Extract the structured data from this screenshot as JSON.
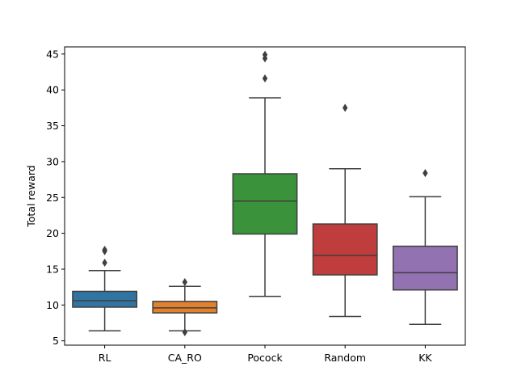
{
  "chart_data": {
    "type": "box",
    "title": "",
    "xlabel": "",
    "ylabel": "Total reward",
    "ylim": [
      4.4,
      46.0
    ],
    "yticks": [
      5,
      10,
      15,
      20,
      25,
      30,
      35,
      40,
      45
    ],
    "grid": false,
    "categories": [
      "RL",
      "CA_RO",
      "Pocock",
      "Random",
      "KK"
    ],
    "boxes": [
      {
        "category": "RL",
        "color": "#3274a1",
        "whisker_low": 6.4,
        "q1": 9.7,
        "median": 10.6,
        "q3": 11.9,
        "whisker_high": 14.8,
        "outliers": [
          15.9,
          17.5,
          17.7
        ]
      },
      {
        "category": "CA_RO",
        "color": "#e1812c",
        "whisker_low": 6.4,
        "q1": 8.9,
        "median": 9.6,
        "q3": 10.5,
        "whisker_high": 12.6,
        "outliers": [
          13.2,
          6.2
        ]
      },
      {
        "category": "Pocock",
        "color": "#3a923a",
        "whisker_low": 11.2,
        "q1": 19.9,
        "median": 24.5,
        "q3": 28.3,
        "whisker_high": 38.9,
        "outliers": [
          41.6,
          44.4,
          44.9
        ]
      },
      {
        "category": "Random",
        "color": "#c03d3e",
        "whisker_low": 8.4,
        "q1": 14.2,
        "median": 16.9,
        "q3": 21.3,
        "whisker_high": 29.0,
        "outliers": [
          37.5
        ]
      },
      {
        "category": "KK",
        "color": "#9372b2",
        "whisker_low": 7.3,
        "q1": 12.1,
        "median": 14.5,
        "q3": 18.2,
        "whisker_high": 25.1,
        "outliers": [
          28.4
        ]
      }
    ],
    "line_color": "#3f3f3f"
  }
}
